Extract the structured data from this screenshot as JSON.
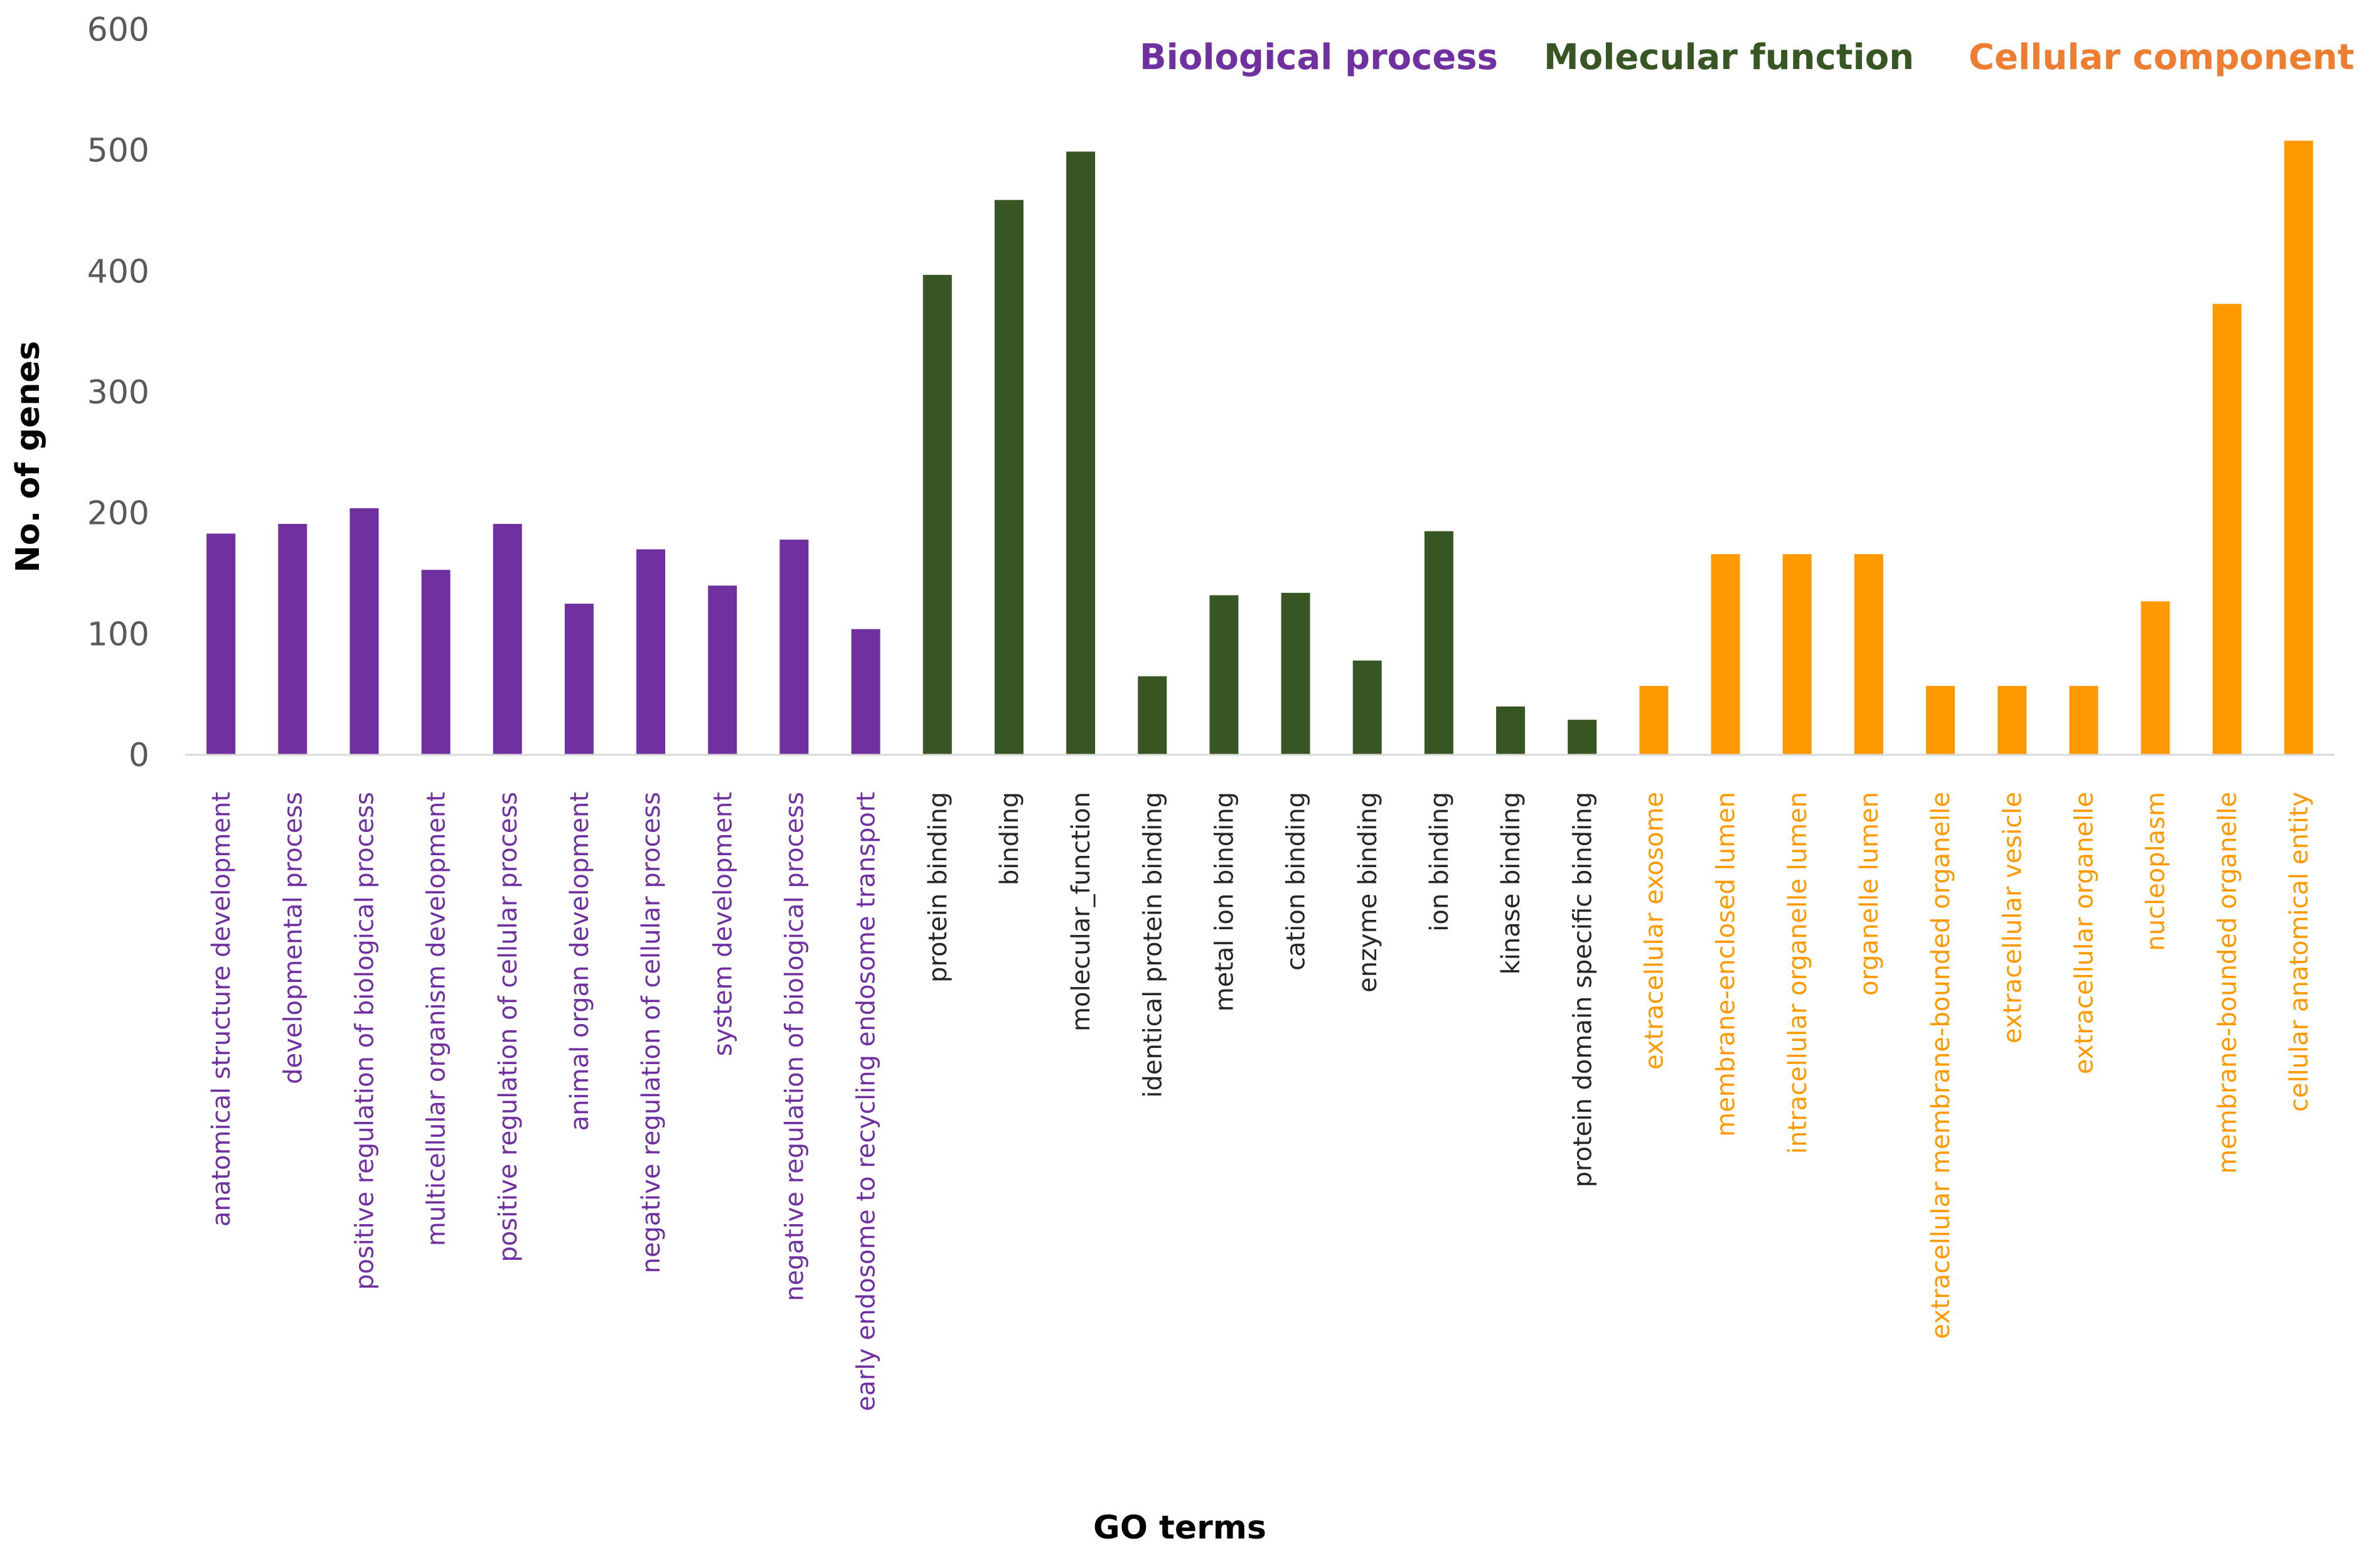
{
  "chart_data": {
    "type": "bar",
    "title": "",
    "xlabel": "GO terms",
    "ylabel": "No. of genes",
    "ylim": [
      0,
      600
    ],
    "yticks": [
      0,
      100,
      200,
      300,
      400,
      500,
      600
    ],
    "grid": false,
    "groups": [
      {
        "name": "Biological process",
        "color": "#7030A0"
      },
      {
        "name": "Molecular function",
        "color": "#375623"
      },
      {
        "name": "Cellular component",
        "color": "#FF9900"
      }
    ],
    "bars": [
      {
        "label": "anatomical structure development",
        "value": 183,
        "group": 0
      },
      {
        "label": "developmental process",
        "value": 191,
        "group": 0
      },
      {
        "label": "positive regulation of biological process",
        "value": 204,
        "group": 0
      },
      {
        "label": "multicellular organism development",
        "value": 153,
        "group": 0
      },
      {
        "label": "positive regulation of cellular process",
        "value": 191,
        "group": 0
      },
      {
        "label": "animal organ development",
        "value": 125,
        "group": 0
      },
      {
        "label": "negative regulation of cellular process",
        "value": 170,
        "group": 0
      },
      {
        "label": "system development",
        "value": 140,
        "group": 0
      },
      {
        "label": "negative regulation of biological process",
        "value": 178,
        "group": 0
      },
      {
        "label": "early endosome to recycling endosome transport",
        "value": 104,
        "group": 0
      },
      {
        "label": "protein binding",
        "value": 397,
        "group": 1
      },
      {
        "label": "binding",
        "value": 459,
        "group": 1
      },
      {
        "label": "molecular_function",
        "value": 499,
        "group": 1
      },
      {
        "label": "identical protein binding",
        "value": 65,
        "group": 1
      },
      {
        "label": "metal ion binding",
        "value": 132,
        "group": 1
      },
      {
        "label": "cation binding",
        "value": 134,
        "group": 1
      },
      {
        "label": "enzyme binding",
        "value": 78,
        "group": 1
      },
      {
        "label": "ion binding",
        "value": 185,
        "group": 1
      },
      {
        "label": "kinase binding",
        "value": 40,
        "group": 1
      },
      {
        "label": "protein domain specific binding",
        "value": 29,
        "group": 1
      },
      {
        "label": "extracellular exosome",
        "value": 57,
        "group": 2
      },
      {
        "label": "membrane-enclosed lumen",
        "value": 166,
        "group": 2
      },
      {
        "label": "intracellular organelle lumen",
        "value": 166,
        "group": 2
      },
      {
        "label": "organelle lumen",
        "value": 166,
        "group": 2
      },
      {
        "label": "extracellular membrane-bounded organelle",
        "value": 57,
        "group": 2
      },
      {
        "label": "extracellular vesicle",
        "value": 57,
        "group": 2
      },
      {
        "label": "extracellular organelle",
        "value": 57,
        "group": 2
      },
      {
        "label": "nucleoplasm",
        "value": 127,
        "group": 2
      },
      {
        "label": "membrane-bounded organelle",
        "value": 373,
        "group": 2
      },
      {
        "label": "cellular anatomical entity",
        "value": 508,
        "group": 2
      }
    ],
    "label_colors": [
      "#7030A0",
      "#262626",
      "#FF9900"
    ],
    "legend_colors": [
      "#7030A0",
      "#375623",
      "#ED7D31"
    ],
    "axis_color": "#D9D9D9",
    "tick_color": "#595959",
    "legend": "top-right"
  }
}
